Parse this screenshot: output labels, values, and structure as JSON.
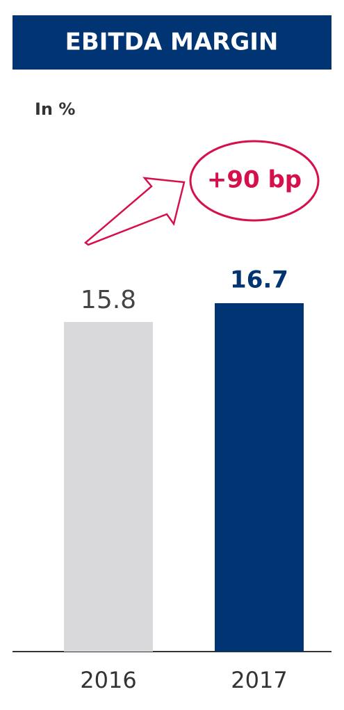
{
  "chart_data": {
    "type": "bar",
    "title": "EBITDA MARGIN",
    "unit_label": "In %",
    "categories": [
      "2016",
      "2017"
    ],
    "values": [
      15.8,
      16.7
    ],
    "colors": [
      "#d9d9db",
      "#003473"
    ],
    "annotation": "+90 bp"
  }
}
